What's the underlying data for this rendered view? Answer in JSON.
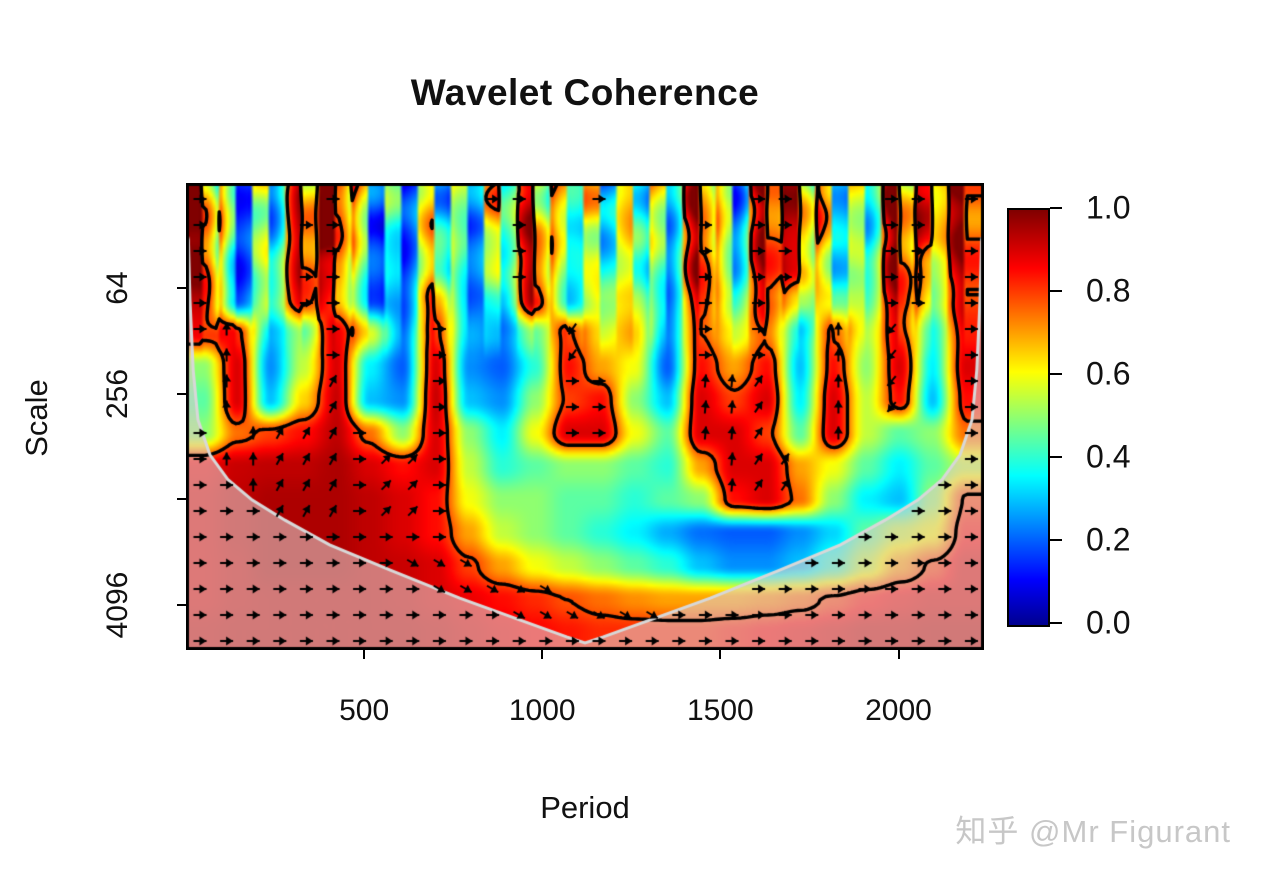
{
  "title": "Wavelet Coherence",
  "watermark": {
    "text": "知乎 @Mr Figurant",
    "color": "#c7c7c7"
  },
  "axes": {
    "x": {
      "label": "Period",
      "range": [
        0,
        2240
      ],
      "ticks": [
        {
          "label": "500",
          "value": 500
        },
        {
          "label": "1000",
          "value": 1000
        },
        {
          "label": "1500",
          "value": 1500
        },
        {
          "label": "2000",
          "value": 2000
        }
      ]
    },
    "y": {
      "label": "Scale",
      "scale": "log2",
      "top_scale": 16,
      "bottom_scale": 7400,
      "ticks": [
        {
          "label": "64",
          "value": 64
        },
        {
          "label": "256",
          "value": 256
        },
        {
          "label": "",
          "value": 1024
        },
        {
          "label": "4096",
          "value": 4096
        }
      ]
    }
  },
  "colorbar": {
    "min": 0,
    "max": 1,
    "tick_values": [
      1.0,
      0.8,
      0.6,
      0.4,
      0.2,
      0.0
    ]
  },
  "chart_data": {
    "type": "heatmap",
    "title": "Wavelet Coherence",
    "xlabel": "Period",
    "ylabel": "Scale",
    "x_range": [
      0,
      2240
    ],
    "y_scale": "log2",
    "y_range": [
      16,
      7400
    ],
    "legend_position": "right-colorbar",
    "colormap_stops": [
      [
        0.0,
        "#00008F"
      ],
      [
        0.11,
        "#0000FF"
      ],
      [
        0.36,
        "#00FFFF"
      ],
      [
        0.61,
        "#FFFF00"
      ],
      [
        0.86,
        "#FF0000"
      ],
      [
        1.0,
        "#800000"
      ]
    ],
    "significance_contour_level": 0.78,
    "coherence_grid": [
      [
        0.9,
        0.3,
        0.35,
        0.85,
        0.9,
        0.4,
        0.3,
        0.5,
        0.4,
        0.55,
        0.8,
        0.5,
        0.45,
        0.6,
        0.4,
        0.8,
        0.4,
        0.85,
        0.85,
        0.5,
        0.45,
        0.85,
        0.75,
        0.9
      ],
      [
        0.92,
        0.25,
        0.4,
        0.9,
        0.88,
        0.35,
        0.25,
        0.55,
        0.35,
        0.5,
        0.85,
        0.45,
        0.4,
        0.6,
        0.35,
        0.85,
        0.35,
        0.9,
        0.85,
        0.45,
        0.4,
        0.9,
        0.7,
        0.92
      ],
      [
        0.93,
        0.2,
        0.45,
        0.9,
        0.8,
        0.3,
        0.22,
        0.6,
        0.3,
        0.45,
        0.9,
        0.4,
        0.45,
        0.55,
        0.3,
        0.9,
        0.4,
        0.9,
        0.8,
        0.4,
        0.45,
        0.92,
        0.6,
        0.9
      ],
      [
        0.9,
        0.22,
        0.5,
        0.88,
        0.7,
        0.28,
        0.22,
        0.75,
        0.28,
        0.35,
        0.9,
        0.35,
        0.55,
        0.6,
        0.28,
        0.85,
        0.45,
        0.85,
        0.6,
        0.5,
        0.5,
        0.9,
        0.5,
        0.88
      ],
      [
        0.85,
        0.85,
        0.3,
        0.5,
        0.9,
        0.6,
        0.25,
        0.85,
        0.3,
        0.25,
        0.5,
        0.8,
        0.6,
        0.7,
        0.25,
        0.8,
        0.6,
        0.75,
        0.35,
        0.8,
        0.55,
        0.85,
        0.4,
        0.85
      ],
      [
        0.5,
        0.9,
        0.25,
        0.55,
        0.9,
        0.35,
        0.2,
        0.9,
        0.25,
        0.2,
        0.4,
        0.85,
        0.7,
        0.6,
        0.2,
        0.85,
        0.7,
        0.85,
        0.3,
        0.85,
        0.5,
        0.9,
        0.35,
        0.9
      ],
      [
        0.45,
        0.9,
        0.3,
        0.65,
        0.92,
        0.3,
        0.25,
        0.92,
        0.3,
        0.25,
        0.5,
        0.8,
        0.85,
        0.5,
        0.3,
        0.9,
        0.8,
        0.9,
        0.35,
        0.9,
        0.55,
        0.85,
        0.3,
        0.85
      ],
      [
        0.5,
        0.75,
        0.8,
        0.85,
        0.93,
        0.75,
        0.5,
        0.9,
        0.5,
        0.35,
        0.6,
        0.9,
        0.9,
        0.6,
        0.45,
        0.9,
        0.9,
        0.8,
        0.45,
        0.9,
        0.55,
        0.45,
        0.5,
        0.75
      ],
      [
        0.88,
        0.92,
        0.93,
        0.93,
        0.95,
        0.9,
        0.85,
        0.9,
        0.55,
        0.4,
        0.45,
        0.5,
        0.5,
        0.45,
        0.4,
        0.7,
        0.9,
        0.9,
        0.7,
        0.6,
        0.45,
        0.35,
        0.45,
        0.55
      ],
      [
        0.9,
        0.93,
        0.95,
        0.95,
        0.95,
        0.93,
        0.9,
        0.85,
        0.6,
        0.5,
        0.5,
        0.45,
        0.45,
        0.4,
        0.45,
        0.5,
        0.85,
        0.9,
        0.75,
        0.5,
        0.35,
        0.3,
        0.5,
        0.8
      ],
      [
        0.9,
        0.93,
        0.95,
        0.95,
        0.95,
        0.93,
        0.9,
        0.85,
        0.7,
        0.55,
        0.5,
        0.45,
        0.4,
        0.35,
        0.28,
        0.22,
        0.2,
        0.2,
        0.25,
        0.32,
        0.45,
        0.55,
        0.6,
        0.85
      ],
      [
        0.9,
        0.92,
        0.95,
        0.95,
        0.95,
        0.93,
        0.92,
        0.9,
        0.8,
        0.7,
        0.6,
        0.55,
        0.5,
        0.45,
        0.4,
        0.3,
        0.25,
        0.25,
        0.3,
        0.4,
        0.55,
        0.7,
        0.8,
        0.9
      ],
      [
        0.9,
        0.92,
        0.93,
        0.93,
        0.93,
        0.93,
        0.92,
        0.9,
        0.88,
        0.85,
        0.82,
        0.78,
        0.75,
        0.72,
        0.7,
        0.7,
        0.7,
        0.72,
        0.75,
        0.8,
        0.85,
        0.88,
        0.9,
        0.9
      ],
      [
        0.92,
        0.93,
        0.93,
        0.93,
        0.93,
        0.93,
        0.93,
        0.92,
        0.9,
        0.88,
        0.86,
        0.84,
        0.82,
        0.82,
        0.82,
        0.82,
        0.84,
        0.86,
        0.88,
        0.9,
        0.92,
        0.92,
        0.93,
        0.93
      ]
    ],
    "top_streak_modulation": [
      0.2,
      -0.3,
      0.25,
      -0.2,
      0.3,
      -0.25,
      0.15,
      -0.3,
      0.3,
      -0.15,
      0.25,
      -0.3,
      0.2,
      -0.2,
      0.3,
      -0.3,
      0.15,
      -0.25,
      0.3,
      -0.2,
      0.25,
      -0.3,
      0.2,
      -0.15,
      0.3,
      -0.25,
      0.15,
      -0.3,
      0.25,
      -0.2,
      0.3,
      -0.15,
      0.2,
      -0.3,
      0.25,
      -0.2,
      0.15,
      -0.3,
      0.3,
      -0.25,
      0.2,
      -0.2,
      0.3,
      -0.3,
      0.25,
      -0.15,
      0.2,
      -0.25
    ],
    "streak_depth_frac": 0.38,
    "coi_curve": [
      [
        0.0,
        0.1
      ],
      [
        0.003,
        0.122
      ],
      [
        0.005,
        0.251
      ],
      [
        0.009,
        0.4
      ],
      [
        0.015,
        0.507
      ],
      [
        0.03,
        0.582
      ],
      [
        0.053,
        0.636
      ],
      [
        0.083,
        0.679
      ],
      [
        0.124,
        0.722
      ],
      [
        0.18,
        0.775
      ],
      [
        0.256,
        0.829
      ],
      [
        0.343,
        0.889
      ],
      [
        0.419,
        0.936
      ],
      [
        0.477,
        0.972
      ],
      [
        0.5,
        0.985
      ],
      [
        0.523,
        0.972
      ],
      [
        0.581,
        0.936
      ],
      [
        0.657,
        0.889
      ],
      [
        0.744,
        0.829
      ],
      [
        0.82,
        0.775
      ],
      [
        0.876,
        0.722
      ],
      [
        0.917,
        0.679
      ],
      [
        0.947,
        0.636
      ],
      [
        0.97,
        0.582
      ],
      [
        0.985,
        0.507
      ],
      [
        0.991,
        0.4
      ],
      [
        0.995,
        0.251
      ],
      [
        0.997,
        0.122
      ],
      [
        1.0,
        0.1
      ]
    ],
    "coi_fill_rgba": "rgba(222,202,200,0.60)",
    "coi_line_color": "#d8d8d8",
    "arrow_threshold": 0.74,
    "arrow_default_angle": 0,
    "phase_arrow_zones": [
      [
        0.03,
        0.095,
        0.35,
        0.75,
        90
      ],
      [
        0.045,
        0.13,
        0.04,
        0.35,
        90
      ],
      [
        0.095,
        0.185,
        0.38,
        0.75,
        60
      ],
      [
        0.245,
        0.315,
        0.4,
        0.75,
        45
      ],
      [
        0.33,
        0.4,
        0.12,
        0.38,
        90
      ],
      [
        0.43,
        0.48,
        0.44,
        0.62,
        195
      ],
      [
        0.455,
        0.505,
        0.26,
        0.42,
        235
      ],
      [
        0.59,
        0.7,
        0.38,
        0.8,
        85
      ],
      [
        0.7,
        0.78,
        0.4,
        0.68,
        55
      ],
      [
        0.79,
        0.865,
        0.28,
        0.62,
        90
      ],
      [
        0.873,
        0.928,
        0.27,
        0.6,
        230
      ],
      [
        0.6,
        0.645,
        0.1,
        0.32,
        90
      ],
      [
        0.28,
        0.82,
        0.8,
        0.97,
        330
      ]
    ]
  }
}
